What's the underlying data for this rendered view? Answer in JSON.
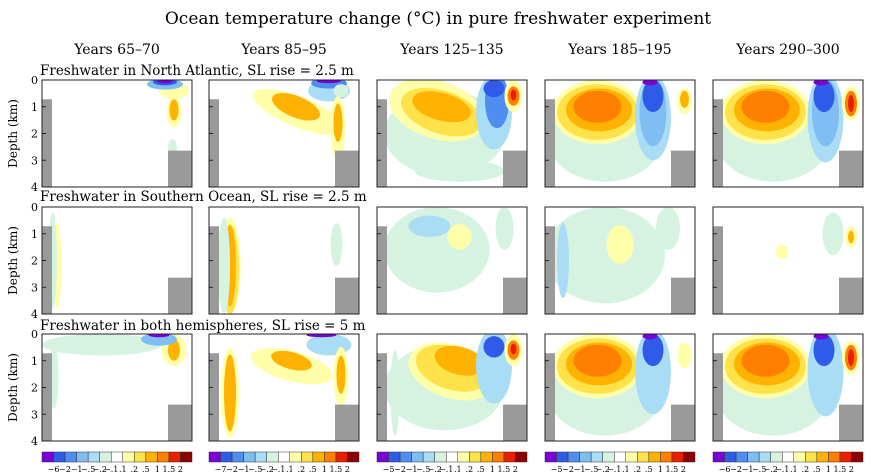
{
  "figure": {
    "title": "Ocean temperature change (°C) in pure freshwater experiment",
    "ylabel": "Depth (km)",
    "depth_ticks": [
      "0",
      "1",
      "2",
      "3",
      "4"
    ],
    "columns": [
      "Years 65–70",
      "Years 85–95",
      "Years 125–135",
      "Years 185–195",
      "Years 290–300"
    ],
    "rows": [
      "Freshwater in North Atlantic, SL rise = 2.5 m",
      "Freshwater in Southern Ocean, SL rise = 2.5 m",
      "Freshwater in both hemispheres, SL rise = 5 m"
    ],
    "colorbar": {
      "labels": [
        "−6",
        "−2",
        "−1",
        "−.5",
        "−.2",
        "−.1",
        ".1",
        ".2",
        ".5",
        "1",
        "1.5",
        "2"
      ],
      "first_label_by_column": [
        "−6",
        "−7",
        "−5",
        "−5",
        "−6"
      ],
      "colors": [
        "#7a00d6",
        "#2f5be8",
        "#4f8ef0",
        "#7fbdf2",
        "#a9dcf5",
        "#d6f3e2",
        "#ffffff",
        "#ffffaa",
        "#ffe14a",
        "#ffb300",
        "#ff8000",
        "#e82000",
        "#8c0000"
      ]
    }
  },
  "chart_data": {
    "type": "heatmap",
    "title": "Ocean temperature change (°C) in pure freshwater experiment",
    "ylabel": "Depth (km)",
    "ylim": [
      4,
      0
    ],
    "panels_rows": [
      "North Atlantic",
      "Southern Ocean",
      "Both hemispheres"
    ],
    "panels_columns": [
      "Years 65–70",
      "Years 85–95",
      "Years 125–135",
      "Years 185–195",
      "Years 290–300"
    ],
    "color_levels": [
      -6,
      -2,
      -1,
      -0.5,
      -0.2,
      -0.1,
      0.1,
      0.2,
      0.5,
      1,
      1.5,
      2
    ]
  }
}
